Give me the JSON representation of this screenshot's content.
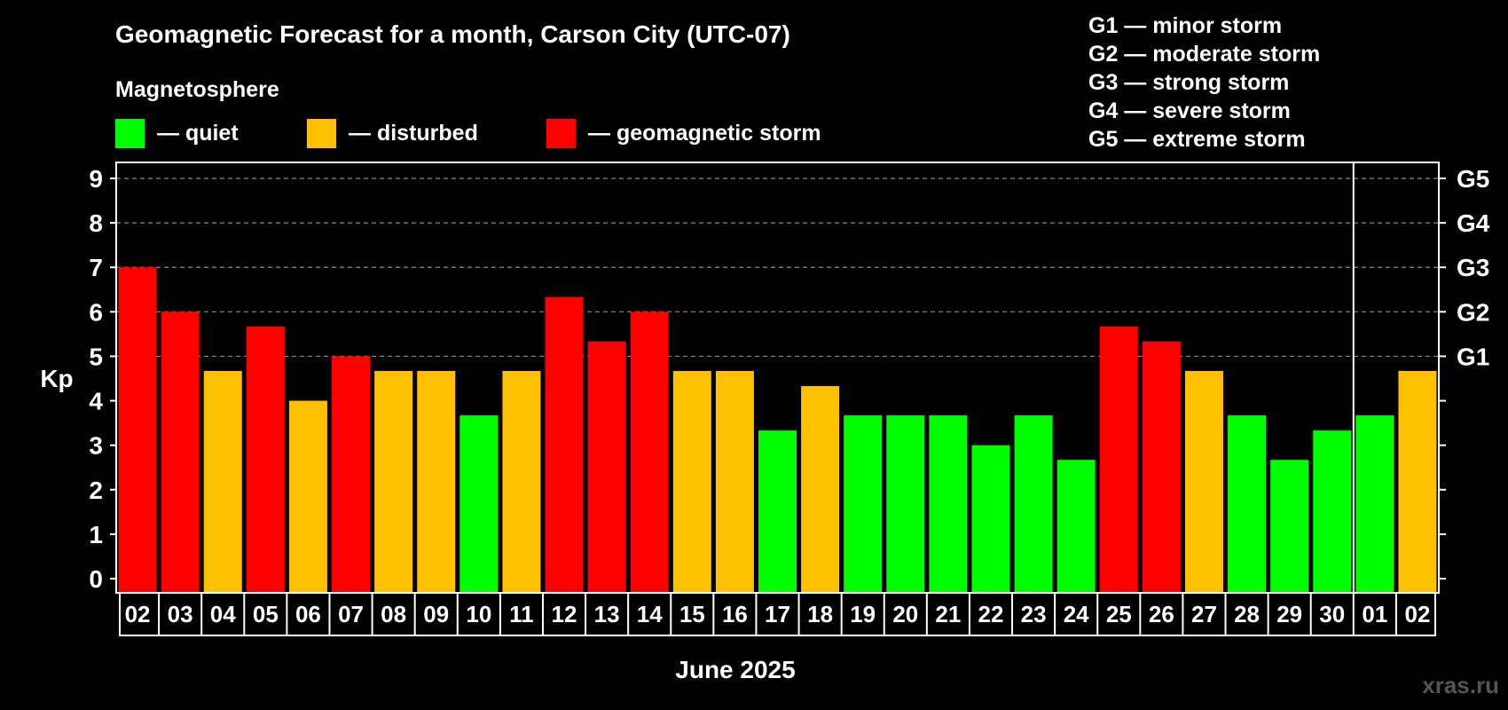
{
  "colors": {
    "background": "#000000",
    "text": "#ffffff",
    "gridline": "#8a8a8a",
    "quiet": "#00ff00",
    "disturbed": "#ffc000",
    "storm": "#ff0000"
  },
  "title": "Geomagnetic Forecast for a month, Carson City (UTC-07)",
  "legend": {
    "heading": "Magnetosphere",
    "items": [
      {
        "key": "quiet",
        "label": "— quiet"
      },
      {
        "key": "disturbed",
        "label": "— disturbed"
      },
      {
        "key": "storm",
        "label": "— geomagnetic storm"
      }
    ]
  },
  "storm_scale": [
    "G1 — minor storm",
    "G2 — moderate storm",
    "G3 — strong storm",
    "G4 — severe storm",
    "G5 — extreme storm"
  ],
  "watermark": "xras.ru",
  "chart_data": {
    "type": "bar",
    "title": "Geomagnetic Forecast for a month, Carson City (UTC-07)",
    "xlabel": "June 2025",
    "ylabel": "Kp",
    "ylim": [
      0,
      9
    ],
    "yticks": [
      0,
      1,
      2,
      3,
      4,
      5,
      6,
      7,
      8,
      9
    ],
    "right_axis": [
      {
        "kp": 5,
        "label": "G1"
      },
      {
        "kp": 6,
        "label": "G2"
      },
      {
        "kp": 7,
        "label": "G3"
      },
      {
        "kp": 8,
        "label": "G4"
      },
      {
        "kp": 9,
        "label": "G5"
      }
    ],
    "grid": true,
    "month_divider_before_index": 29,
    "categories": [
      "02",
      "03",
      "04",
      "05",
      "06",
      "07",
      "08",
      "09",
      "10",
      "11",
      "12",
      "13",
      "14",
      "15",
      "16",
      "17",
      "18",
      "19",
      "20",
      "21",
      "22",
      "23",
      "24",
      "25",
      "26",
      "27",
      "28",
      "29",
      "30",
      "01",
      "02"
    ],
    "values": [
      7,
      6,
      4.67,
      5.67,
      4,
      5,
      4.67,
      4.67,
      3.67,
      4.67,
      6.33,
      5.33,
      6,
      4.67,
      4.67,
      3.33,
      4.33,
      3.67,
      3.67,
      3.67,
      3,
      3.67,
      2.67,
      5.67,
      5.33,
      4.67,
      3.67,
      2.67,
      3.33,
      3.67,
      4.67
    ],
    "levels": [
      "storm",
      "storm",
      "disturbed",
      "storm",
      "disturbed",
      "storm",
      "disturbed",
      "disturbed",
      "quiet",
      "disturbed",
      "storm",
      "storm",
      "storm",
      "disturbed",
      "disturbed",
      "quiet",
      "disturbed",
      "quiet",
      "quiet",
      "quiet",
      "quiet",
      "quiet",
      "quiet",
      "storm",
      "storm",
      "disturbed",
      "quiet",
      "quiet",
      "quiet",
      "quiet",
      "disturbed"
    ]
  }
}
